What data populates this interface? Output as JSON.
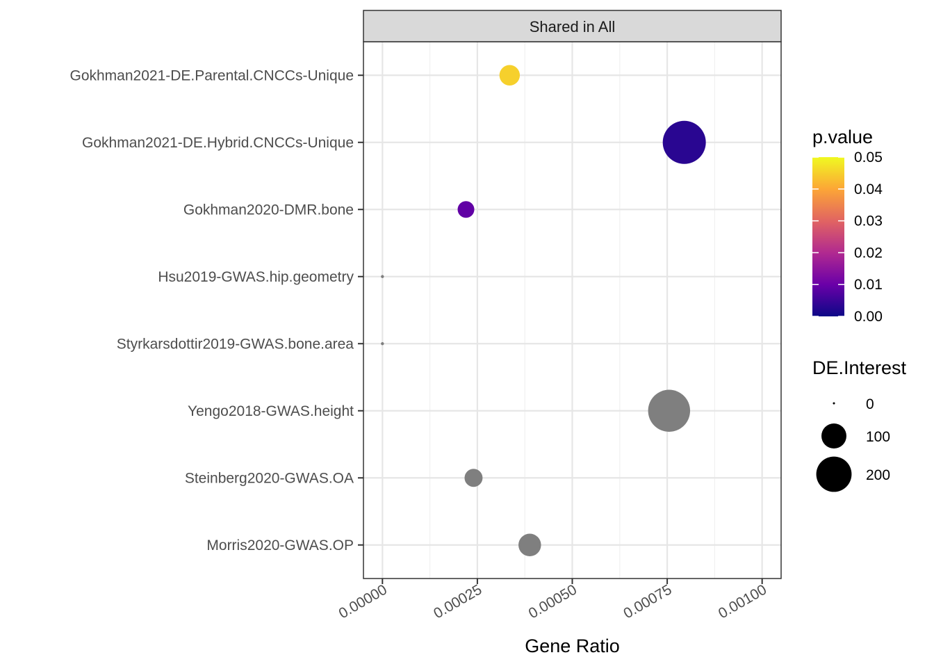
{
  "chart_data": {
    "type": "scatter",
    "panel_title": "Shared in All",
    "xlabel": "Gene Ratio",
    "ylabel": "",
    "xlim": [
      -5e-05,
      0.00105
    ],
    "x_ticks": [
      0,
      0.00025,
      0.0005,
      0.00075,
      0.001
    ],
    "x_tick_labels": [
      "0.00000",
      "0.00025",
      "0.00050",
      "0.00075",
      "0.00100"
    ],
    "grid": true,
    "categories": [
      "Gokhman2021-DE.Parental.CNCCs-Unique",
      "Gokhman2021-DE.Hybrid.CNCCs-Unique",
      "Gokhman2020-DMR.bone",
      "Hsu2019-GWAS.hip.geometry",
      "Styrkarsdottir2019-GWAS.bone.area",
      "Yengo2018-GWAS.height",
      "Steinberg2020-GWAS.OA",
      "Morris2020-GWAS.OP"
    ],
    "points": [
      {
        "category": "Gokhman2021-DE.Parental.CNCCs-Unique",
        "x": 0.000335,
        "p_value": 0.045,
        "de_interest": 45
      },
      {
        "category": "Gokhman2021-DE.Hybrid.CNCCs-Unique",
        "x": 0.000795,
        "p_value": 0.003,
        "de_interest": 200
      },
      {
        "category": "Gokhman2020-DMR.bone",
        "x": 0.00022,
        "p_value": 0.009,
        "de_interest": 30
      },
      {
        "category": "Hsu2019-GWAS.hip.geometry",
        "x": 0.0,
        "p_value": null,
        "de_interest": 0
      },
      {
        "category": "Styrkarsdottir2019-GWAS.bone.area",
        "x": 0.0,
        "p_value": null,
        "de_interest": 0
      },
      {
        "category": "Yengo2018-GWAS.height",
        "x": 0.000755,
        "p_value": null,
        "de_interest": 190
      },
      {
        "category": "Steinberg2020-GWAS.OA",
        "x": 0.00024,
        "p_value": null,
        "de_interest": 35
      },
      {
        "category": "Morris2020-GWAS.OP",
        "x": 0.000388,
        "p_value": null,
        "de_interest": 55
      }
    ],
    "na_color": "#7f7f7f",
    "color_legend": {
      "title": "p.value",
      "range": [
        0,
        0.05
      ],
      "ticks": [
        "0.05",
        "0.04",
        "0.03",
        "0.02",
        "0.01",
        "0.00"
      ],
      "gradient": [
        "#0d0887",
        "#6a00a8",
        "#b12a90",
        "#e16462",
        "#fca636",
        "#f0f921"
      ]
    },
    "size_legend": {
      "title": "DE.Interest",
      "values": [
        0,
        100,
        200
      ],
      "labels": [
        "0",
        "100",
        "200"
      ]
    },
    "legend_position": "right"
  }
}
